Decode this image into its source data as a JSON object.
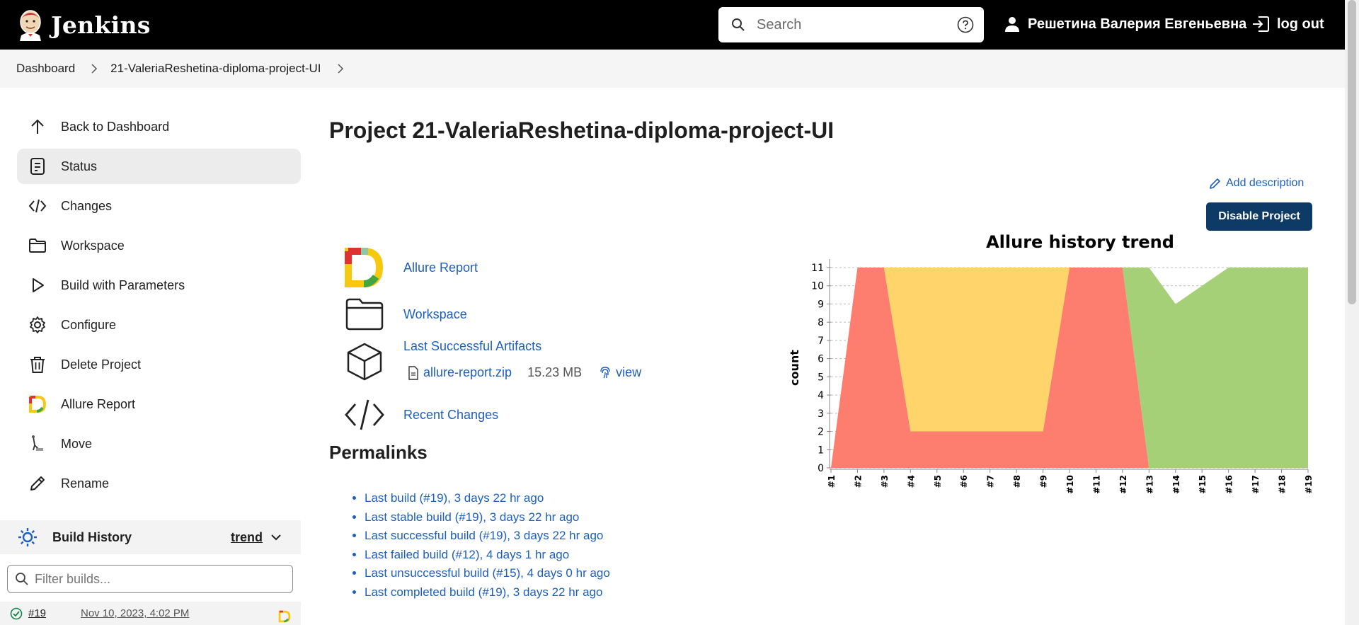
{
  "header": {
    "app_name": "Jenkins",
    "search_placeholder": "Search",
    "user_name": "Решетина Валерия Евгеньевна",
    "logout_label": "log out"
  },
  "breadcrumb": {
    "items": [
      "Dashboard",
      "21-ValeriaReshetina-diploma-project-UI"
    ]
  },
  "sidebar": {
    "items": [
      {
        "label": "Back to Dashboard",
        "icon": "arrow-up-icon"
      },
      {
        "label": "Status",
        "icon": "status-document-icon",
        "active": true
      },
      {
        "label": "Changes",
        "icon": "code-icon"
      },
      {
        "label": "Workspace",
        "icon": "folder-icon"
      },
      {
        "label": "Build with Parameters",
        "icon": "play-icon"
      },
      {
        "label": "Configure",
        "icon": "gear-icon"
      },
      {
        "label": "Delete Project",
        "icon": "trash-icon"
      },
      {
        "label": "Allure Report",
        "icon": "allure-logo-icon"
      },
      {
        "label": "Move",
        "icon": "move-icon"
      },
      {
        "label": "Rename",
        "icon": "pencil-icon"
      }
    ],
    "build_history": {
      "title": "Build History",
      "trend_label": "trend",
      "filter_placeholder": "Filter builds...",
      "builds": [
        {
          "number": "#19",
          "date": "Nov 10, 2023, 4:02 PM",
          "status": "success"
        }
      ]
    }
  },
  "main": {
    "title": "Project 21-ValeriaReshetina-diploma-project-UI",
    "add_description_label": "Add description",
    "disable_button_label": "Disable Project",
    "links": [
      {
        "label": "Allure Report",
        "icon": "allure-logo-icon"
      },
      {
        "label": "Workspace",
        "icon": "folder-icon"
      },
      {
        "label": "Last Successful Artifacts",
        "icon": "package-icon"
      },
      {
        "label": "Recent Changes",
        "icon": "code-icon"
      }
    ],
    "artifact": {
      "file_name": "allure-report.zip",
      "size": "15.23 MB",
      "view_label": "view"
    },
    "permalinks_title": "Permalinks",
    "permalinks": [
      "Last build (#19), 3 days 22 hr ago",
      "Last stable build (#19), 3 days 22 hr ago",
      "Last successful build (#19), 3 days 22 hr ago",
      "Last failed build (#12), 4 days 1 hr ago",
      "Last unsuccessful build (#15), 4 days 0 hr ago",
      "Last completed build (#19), 3 days 22 hr ago"
    ]
  },
  "colors": {
    "header_bg": "#000000",
    "link": "#1d5fbf",
    "disable_button": "#0d3b66",
    "failed": "#fd7d6e",
    "broken": "#fed46b",
    "passed": "#a5d078"
  },
  "chart_data": {
    "type": "area",
    "stacked": true,
    "title": "Allure history trend",
    "ylabel": "count",
    "xlabel": "",
    "ylim": [
      0,
      11
    ],
    "yticks": [
      0,
      1,
      2,
      3,
      4,
      5,
      6,
      7,
      8,
      9,
      10,
      11
    ],
    "grid": true,
    "categories": [
      "#1",
      "#2",
      "#3",
      "#4",
      "#5",
      "#6",
      "#7",
      "#8",
      "#9",
      "#10",
      "#11",
      "#12",
      "#13",
      "#14",
      "#15",
      "#16",
      "#17",
      "#18",
      "#19"
    ],
    "series": [
      {
        "color": "#fd7d6e",
        "values": [
          0,
          11,
          11,
          2,
          2,
          2,
          2,
          2,
          2,
          11,
          11,
          11,
          0,
          0,
          0,
          0,
          0,
          0,
          0
        ]
      },
      {
        "color": "#fed46b",
        "values": [
          0,
          0,
          0,
          9,
          9,
          9,
          9,
          9,
          9,
          0,
          0,
          0,
          0,
          0,
          0,
          0,
          0,
          0,
          0
        ]
      },
      {
        "color": "#a5d078",
        "values": [
          0,
          0,
          0,
          0,
          0,
          0,
          0,
          0,
          0,
          0,
          0,
          0,
          11,
          9,
          10,
          11,
          11,
          11,
          11
        ]
      }
    ]
  }
}
